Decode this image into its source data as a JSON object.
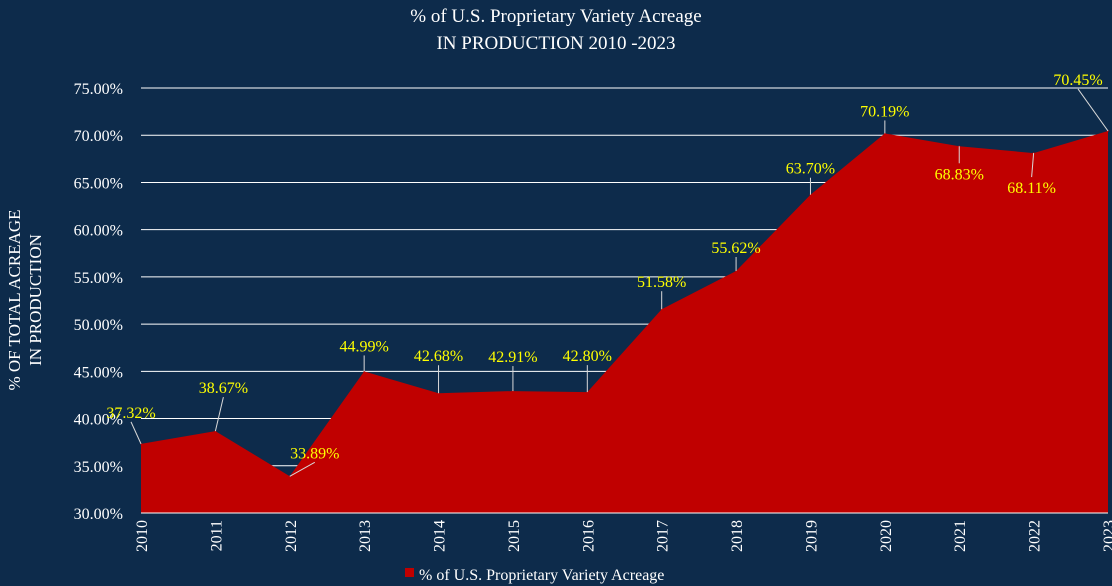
{
  "chart_data": {
    "type": "area",
    "title": "% of U.S. Proprietary Variety Acreage",
    "subtitle": "IN PRODUCTION 2010 -2023",
    "ylabel_line1": "% OF TOTAL ACREAGE",
    "ylabel_line2": "IN PRODUCTION",
    "xlabel": "",
    "x": [
      "2010",
      "2011",
      "2012",
      "2013",
      "2014",
      "2015",
      "2016",
      "2017",
      "2018",
      "2019",
      "2020",
      "2021",
      "2022",
      "2023"
    ],
    "series": [
      {
        "name": "% of U.S. Proprietary Variety Acreage",
        "values": [
          37.32,
          38.67,
          33.89,
          44.99,
          42.68,
          42.91,
          42.8,
          51.58,
          55.62,
          63.7,
          70.19,
          68.83,
          68.11,
          70.45
        ],
        "labels": [
          "37.32%",
          "38.67%",
          "33.89%",
          "44.99%",
          "42.68%",
          "42.91%",
          "42.80%",
          "51.58%",
          "55.62%",
          "63.70%",
          "70.19%",
          "68.83%",
          "68.11%",
          "70.45%"
        ]
      }
    ],
    "ylim": [
      30,
      75
    ],
    "yticks": [
      30,
      35,
      40,
      45,
      50,
      55,
      60,
      65,
      70,
      75
    ],
    "ytick_labels": [
      "30.00%",
      "35.00%",
      "40.00%",
      "45.00%",
      "50.00%",
      "55.00%",
      "60.00%",
      "65.00%",
      "70.00%",
      "75.00%"
    ],
    "grid": true,
    "legend_position": "bottom",
    "colors": {
      "background": "#0d2b4b",
      "area": "#c00000",
      "data_label": "#ffff00",
      "text": "#ffffff",
      "grid": "#ffffff"
    }
  }
}
